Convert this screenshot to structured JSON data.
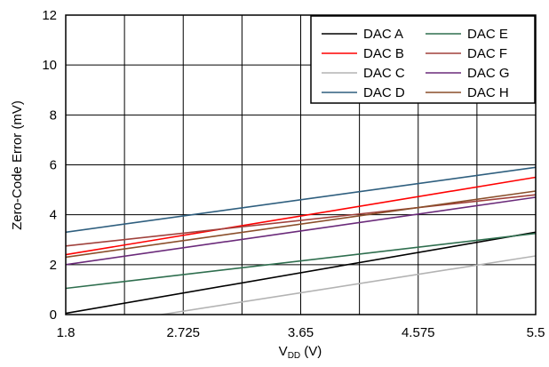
{
  "chart_data": {
    "type": "line",
    "xlabel_main": "V",
    "xlabel_sub": "DD",
    "xlabel_unit": " (V)",
    "ylabel": "Zero-Code Error (mV)",
    "xlim": [
      1.8,
      5.5
    ],
    "ylim": [
      0,
      12
    ],
    "x_ticks": [
      "1.8",
      "2.725",
      "3.65",
      "4.575",
      "5.5"
    ],
    "y_ticks": [
      "0",
      "2",
      "4",
      "6",
      "8",
      "10",
      "12"
    ],
    "grid": true,
    "legend_position": "top-right",
    "series": [
      {
        "name": "DAC A",
        "color": "#000000",
        "x": [
          1.8,
          5.5
        ],
        "y": [
          0.05,
          3.3
        ]
      },
      {
        "name": "DAC B",
        "color": "#ff0000",
        "x": [
          1.8,
          5.5
        ],
        "y": [
          2.4,
          5.5
        ]
      },
      {
        "name": "DAC C",
        "color": "#b3b3b3",
        "x": [
          1.8,
          5.5
        ],
        "y": [
          -0.6,
          2.35
        ]
      },
      {
        "name": "DAC D",
        "color": "#2e5e7e",
        "x": [
          1.8,
          5.5
        ],
        "y": [
          3.3,
          5.9
        ]
      },
      {
        "name": "DAC E",
        "color": "#2e6e4e",
        "x": [
          1.8,
          5.5
        ],
        "y": [
          1.05,
          3.25
        ]
      },
      {
        "name": "DAC F",
        "color": "#a0413c",
        "x": [
          1.8,
          5.5
        ],
        "y": [
          2.75,
          4.8
        ]
      },
      {
        "name": "DAC G",
        "color": "#6a2a7a",
        "x": [
          1.8,
          5.5
        ],
        "y": [
          2.0,
          4.7
        ]
      },
      {
        "name": "DAC H",
        "color": "#8a4e2a",
        "x": [
          1.8,
          5.5
        ],
        "y": [
          2.3,
          4.95
        ]
      }
    ]
  }
}
